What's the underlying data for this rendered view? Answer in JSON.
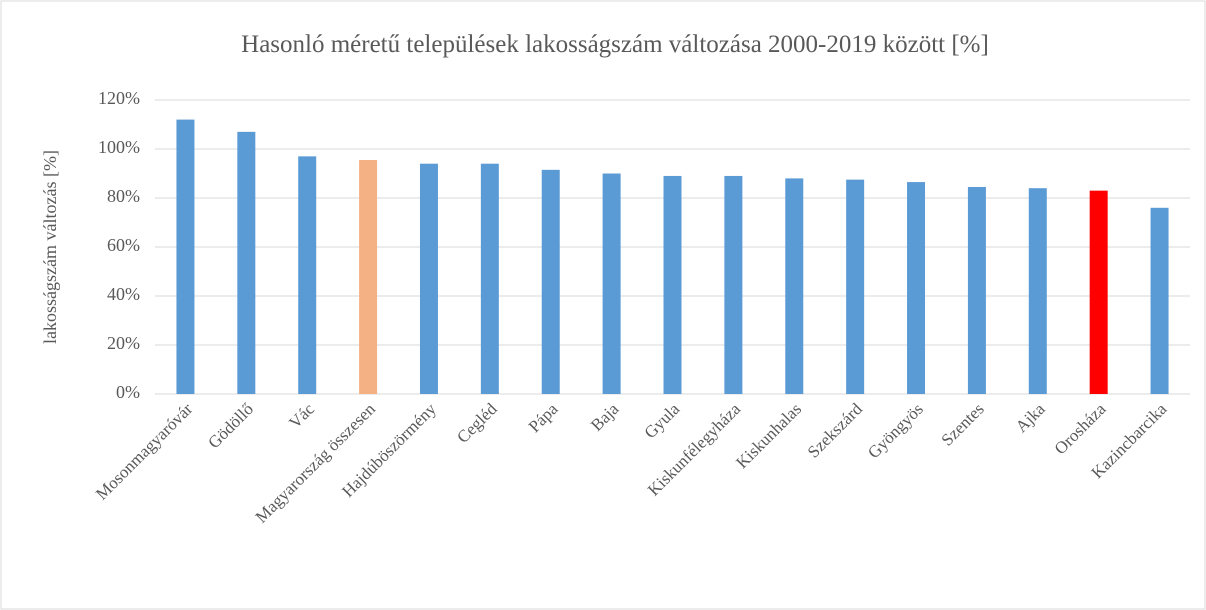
{
  "chart_data": {
    "type": "bar",
    "title": "Hasonló méretű települések lakosságszám változása 2000-2019 között [%]",
    "y_label": "lakosságszám változás [%]",
    "categories": [
      "Mosonmagyaróvár",
      "Gödöllő",
      "Vác",
      "Magyarország összesen",
      "Hajdúböszörmény",
      "Cegléd",
      "Pápa",
      "Baja",
      "Gyula",
      "Kiskunfélegyháza",
      "Kiskunhalas",
      "Szekszárd",
      "Gyöngyös",
      "Szentes",
      "Ajka",
      "Orosháza",
      "Kazincbarcika"
    ],
    "values": [
      112,
      107,
      97,
      95.5,
      94,
      94,
      91.5,
      90,
      89,
      89,
      88,
      87.5,
      86.5,
      84.5,
      84,
      83,
      76
    ],
    "colors": [
      "#5b9bd5",
      "#5b9bd5",
      "#5b9bd5",
      "#f4b183",
      "#5b9bd5",
      "#5b9bd5",
      "#5b9bd5",
      "#5b9bd5",
      "#5b9bd5",
      "#5b9bd5",
      "#5b9bd5",
      "#5b9bd5",
      "#5b9bd5",
      "#5b9bd5",
      "#5b9bd5",
      "#ff0000",
      "#5b9bd5"
    ],
    "ylim": [
      0,
      120
    ],
    "yticks": [
      {
        "value": 0,
        "label": "0%"
      },
      {
        "value": 20,
        "label": "20%"
      },
      {
        "value": 40,
        "label": "40%"
      },
      {
        "value": 60,
        "label": "60%"
      },
      {
        "value": 80,
        "label": "80%"
      },
      {
        "value": 100,
        "label": "100%"
      },
      {
        "value": 120,
        "label": "120%"
      }
    ],
    "grid": true
  }
}
